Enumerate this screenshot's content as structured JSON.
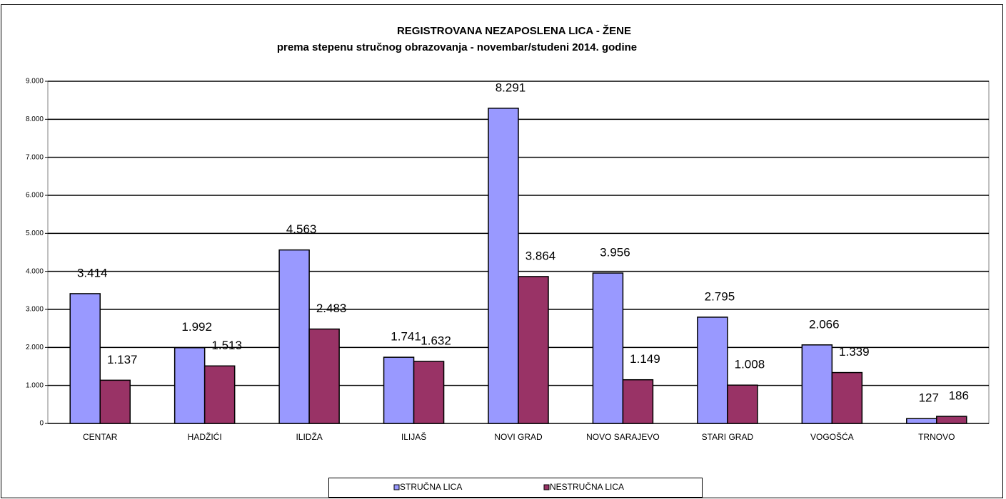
{
  "chart_data": {
    "type": "bar",
    "title": "REGISTROVANA NEZAPOSLENA LICA - ŽENE",
    "subtitle": "prema stepenu stručnog obrazovanja - novembar/studeni  2014. godine",
    "categories": [
      "CENTAR",
      "HADŽIĆI",
      "ILIDŽA",
      "ILIJAŠ",
      "NOVI GRAD",
      "NOVO SARAJEVO",
      "STARI GRAD",
      "VOGOŠĆA",
      "TRNOVO"
    ],
    "series": [
      {
        "name": "STRUČNA LICA",
        "color": "#9999ff",
        "values": [
          3414,
          1992,
          4563,
          1741,
          8291,
          3956,
          2795,
          2066,
          127
        ],
        "value_labels": [
          "3.414",
          "1.992",
          "4.563",
          "1.741",
          "8.291",
          "3.956",
          "2.795",
          "2.066",
          "127"
        ]
      },
      {
        "name": "NESTRUČNA LICA",
        "color": "#993366",
        "values": [
          1137,
          1513,
          2483,
          1632,
          3864,
          1149,
          1008,
          1339,
          186
        ],
        "value_labels": [
          "1.137",
          "1.513",
          "2.483",
          "1.632",
          "3.864",
          "1.149",
          "1.008",
          "1.339",
          "186"
        ]
      }
    ],
    "ylim": [
      0,
      9000
    ],
    "yticks": [
      0,
      {
        "value": 1000,
        "label": "1.000"
      },
      {
        "value": 2000,
        "label": "2.000"
      },
      {
        "value": 3000,
        "label": "3.000"
      },
      {
        "value": 4000,
        "label": "4.000"
      },
      {
        "value": 5000,
        "label": "5.000"
      },
      {
        "value": 6000,
        "label": "6.000"
      },
      {
        "value": 7000,
        "label": "7.000"
      },
      {
        "value": 8000,
        "label": "8.000"
      },
      {
        "value": 9000,
        "label": "9.000"
      }
    ],
    "grid": true
  }
}
